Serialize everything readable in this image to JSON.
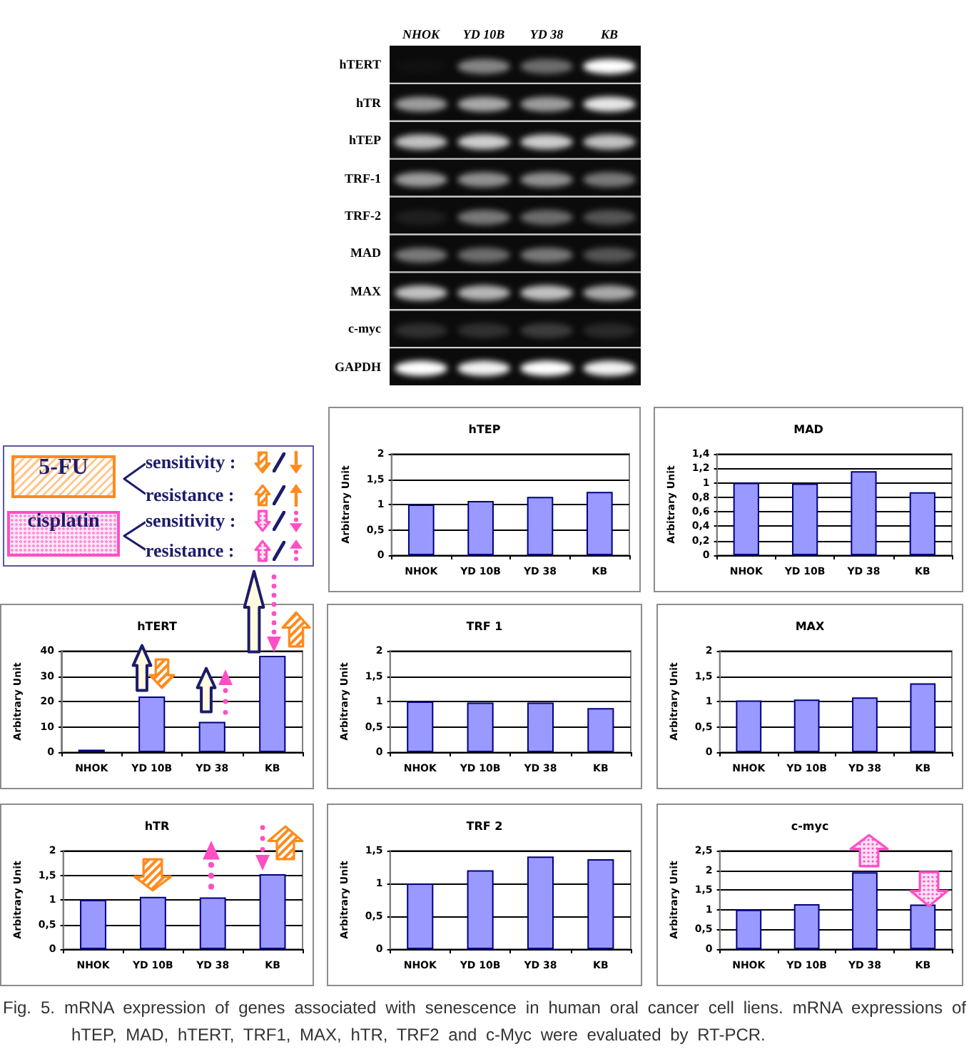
{
  "chart_data": [
    {
      "type": "other",
      "categories": [
        "NHOK",
        "YD 10B",
        "YD 38",
        "KB"
      ],
      "y_categories": [
        "hTERT",
        "hTR",
        "hTEP",
        "TRF-1",
        "TRF-2",
        "MAD",
        "MAX",
        "c-myc",
        "GAPDH"
      ]
    },
    {
      "type": "other",
      "categories": [
        "5-FU",
        "cisplatin"
      ],
      "annotations": [
        "sensitivity :",
        "resistance :",
        "sensitivity :",
        "resistance :"
      ]
    },
    {
      "type": "bar",
      "title": "hTEP",
      "ylabel": "Arbitrary Unit",
      "categories": [
        "NHOK",
        "YD 10B",
        "YD 38",
        "KB"
      ],
      "values": [
        1.0,
        1.07,
        1.15,
        1.25
      ],
      "color": "#9999ff",
      "ylim": [
        0,
        2
      ],
      "yticks": [
        0,
        {
          "value": 0.5,
          "label": "0,5"
        },
        1,
        {
          "value": 1.5,
          "label": "1,5"
        },
        2
      ],
      "grid": "y"
    },
    {
      "type": "bar",
      "title": "MAD",
      "ylabel": "Arbitrary Unit",
      "categories": [
        "NHOK",
        "YD 10B",
        "YD 38",
        "KB"
      ],
      "values": [
        1.0,
        0.99,
        1.16,
        0.87
      ],
      "color": "#9999ff",
      "ylim": [
        0,
        1.4
      ],
      "yticks": [
        0,
        {
          "value": 0.2,
          "label": "0,2"
        },
        {
          "value": 0.4,
          "label": "0,4"
        },
        {
          "value": 0.6,
          "label": "0,6"
        },
        {
          "value": 0.8,
          "label": "0,8"
        },
        1,
        {
          "value": 1.2,
          "label": "1,2"
        },
        {
          "value": 1.4,
          "label": "1,4"
        }
      ],
      "grid": "y"
    },
    {
      "type": "bar",
      "title": "hTERT",
      "ylabel": "Arbitrary Unit",
      "categories": [
        "NHOK",
        "YD 10B",
        "YD 38",
        "KB"
      ],
      "values": [
        1,
        22,
        12,
        38
      ],
      "color": "#9999ff",
      "ylim": [
        0,
        40
      ],
      "yticks": [
        0,
        10,
        20,
        30,
        40
      ],
      "grid": "y"
    },
    {
      "type": "bar",
      "title": "TRF 1",
      "ylabel": "Arbitrary Unit",
      "categories": [
        "NHOK",
        "YD 10B",
        "YD 38",
        "KB"
      ],
      "values": [
        1.0,
        0.98,
        0.98,
        0.87
      ],
      "color": "#9999ff",
      "ylim": [
        0,
        2
      ],
      "yticks": [
        0,
        {
          "value": 0.5,
          "label": "0,5"
        },
        1,
        {
          "value": 1.5,
          "label": "1,5"
        },
        2
      ],
      "grid": "y"
    },
    {
      "type": "bar",
      "title": "MAX",
      "ylabel": "Arbitrary Unit",
      "categories": [
        "NHOK",
        "YD 10B",
        "YD 38",
        "KB"
      ],
      "values": [
        1.02,
        1.04,
        1.08,
        1.36
      ],
      "color": "#9999ff",
      "ylim": [
        0,
        2
      ],
      "yticks": [
        0,
        {
          "value": 0.5,
          "label": "0,5"
        },
        1,
        {
          "value": 1.5,
          "label": "1,5"
        },
        2
      ],
      "grid": "y"
    },
    {
      "type": "bar",
      "title": "hTR",
      "ylabel": "Arbitrary Unit",
      "categories": [
        "NHOK",
        "YD 10B",
        "YD 38",
        "KB"
      ],
      "values": [
        1.0,
        1.06,
        1.05,
        1.52
      ],
      "color": "#9999ff",
      "ylim": [
        0,
        2
      ],
      "yticks": [
        0,
        {
          "value": 0.5,
          "label": "0,5"
        },
        1,
        {
          "value": 1.5,
          "label": "1,5"
        },
        2
      ],
      "grid": "y"
    },
    {
      "type": "bar",
      "title": "TRF 2",
      "ylabel": "Arbitrary Unit",
      "categories": [
        "NHOK",
        "YD 10B",
        "YD 38",
        "KB"
      ],
      "values": [
        1.0,
        1.2,
        1.41,
        1.37
      ],
      "color": "#9999ff",
      "ylim": [
        0,
        1.5
      ],
      "yticks": [
        0,
        {
          "value": 0.5,
          "label": "0,5"
        },
        1,
        {
          "value": 1.5,
          "label": "1,5"
        }
      ],
      "grid": "y"
    },
    {
      "type": "bar",
      "title": "c-myc",
      "ylabel": "Arbitrary Unit",
      "categories": [
        "NHOK",
        "YD 10B",
        "YD 38",
        "KB"
      ],
      "values": [
        1.0,
        1.14,
        1.95,
        1.13
      ],
      "color": "#9999ff",
      "ylim": [
        0,
        2.5
      ],
      "yticks": [
        0,
        {
          "value": 0.5,
          "label": "0,5"
        },
        1,
        {
          "value": 1.5,
          "label": "1,5"
        },
        2,
        {
          "value": 2.5,
          "label": "2,5"
        }
      ],
      "grid": "y"
    },
    {
      "type": "other",
      "annotations": [
        "Fig. 5. mRNA expression of genes associated with senescence in human oral cancer cell liens. mRNA expressions of hTEP, MAD, hTERT, TRF1, MAX, hTR, TRF2 and c-Myc were evaluated by RT-PCR."
      ]
    }
  ]
}
